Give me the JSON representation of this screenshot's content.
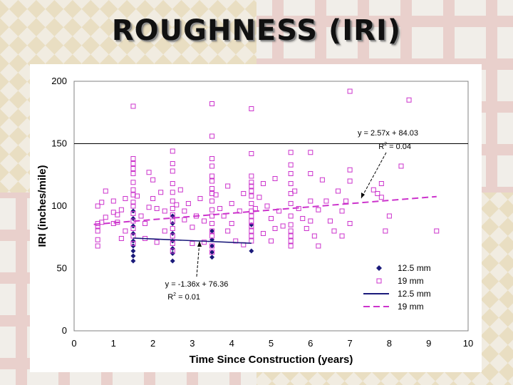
{
  "slide": {
    "title": "ROUGHNESS (IRI)",
    "flag_colors": [
      "#c8a24a",
      "#1a1a1a",
      "#b5453f",
      "#e7e1d5"
    ]
  },
  "chart_data": {
    "type": "scatter",
    "title": "",
    "xlabel": "Time Since Construction (years)",
    "ylabel": "IRI (inches/mile)",
    "xlim": [
      0,
      10
    ],
    "ylim": [
      0,
      200
    ],
    "xticks": [
      "0",
      "1",
      "2",
      "3",
      "4",
      "5",
      "6",
      "7",
      "8",
      "9",
      "10"
    ],
    "yticks": [
      "0",
      "50",
      "100",
      "150",
      "200"
    ],
    "grid": "horizontal at 150",
    "legend_position": "bottom-right",
    "series": [
      {
        "name": "12.5 mm",
        "kind": "points",
        "marker": "diamond",
        "color": "#1a1a7a",
        "points": [
          [
            1.5,
            56
          ],
          [
            1.5,
            60
          ],
          [
            1.5,
            64
          ],
          [
            1.5,
            68
          ],
          [
            1.5,
            72
          ],
          [
            1.5,
            78
          ],
          [
            1.5,
            84
          ],
          [
            1.5,
            90
          ],
          [
            1.5,
            96
          ],
          [
            2.5,
            56
          ],
          [
            2.5,
            62
          ],
          [
            2.5,
            66
          ],
          [
            2.5,
            72
          ],
          [
            2.5,
            78
          ],
          [
            2.5,
            86
          ],
          [
            2.5,
            92
          ],
          [
            3.5,
            59
          ],
          [
            3.5,
            63
          ],
          [
            3.5,
            68
          ],
          [
            3.5,
            73
          ],
          [
            3.5,
            80
          ],
          [
            4.5,
            64
          ],
          [
            4.5,
            85
          ]
        ]
      },
      {
        "name": "19 mm",
        "kind": "points",
        "marker": "square",
        "color": "#cc33cc",
        "points": [
          [
            0.6,
            68
          ],
          [
            0.6,
            73
          ],
          [
            0.6,
            80
          ],
          [
            0.6,
            84
          ],
          [
            0.6,
            86
          ],
          [
            0.6,
            100
          ],
          [
            0.7,
            103
          ],
          [
            0.7,
            87
          ],
          [
            0.8,
            91
          ],
          [
            0.8,
            112
          ],
          [
            1.0,
            86
          ],
          [
            1.0,
            95
          ],
          [
            1.0,
            104
          ],
          [
            1.1,
            93
          ],
          [
            1.1,
            87
          ],
          [
            1.2,
            97
          ],
          [
            1.2,
            74
          ],
          [
            1.3,
            106
          ],
          [
            1.3,
            80
          ],
          [
            1.5,
            180
          ],
          [
            1.5,
            138
          ],
          [
            1.5,
            134
          ],
          [
            1.5,
            130
          ],
          [
            1.5,
            126
          ],
          [
            1.5,
            119
          ],
          [
            1.5,
            113
          ],
          [
            1.5,
            109
          ],
          [
            1.5,
            103
          ],
          [
            1.5,
            100
          ],
          [
            1.5,
            94
          ],
          [
            1.5,
            88
          ],
          [
            1.5,
            82
          ],
          [
            1.5,
            76
          ],
          [
            1.5,
            70
          ],
          [
            1.6,
            108
          ],
          [
            1.7,
            92
          ],
          [
            1.8,
            86
          ],
          [
            1.8,
            74
          ],
          [
            1.9,
            127
          ],
          [
            1.9,
            99
          ],
          [
            2.0,
            121
          ],
          [
            2.0,
            106
          ],
          [
            2.1,
            98
          ],
          [
            2.1,
            71
          ],
          [
            2.2,
            111
          ],
          [
            2.3,
            96
          ],
          [
            2.3,
            80
          ],
          [
            2.5,
            144
          ],
          [
            2.5,
            134
          ],
          [
            2.5,
            128
          ],
          [
            2.5,
            118
          ],
          [
            2.5,
            111
          ],
          [
            2.5,
            104
          ],
          [
            2.5,
            98
          ],
          [
            2.5,
            93
          ],
          [
            2.5,
            88
          ],
          [
            2.5,
            82
          ],
          [
            2.5,
            76
          ],
          [
            2.5,
            70
          ],
          [
            2.5,
            64
          ],
          [
            2.6,
            101
          ],
          [
            2.7,
            113
          ],
          [
            2.8,
            96
          ],
          [
            2.8,
            89
          ],
          [
            2.9,
            102
          ],
          [
            3.0,
            83
          ],
          [
            3.0,
            70
          ],
          [
            3.1,
            92
          ],
          [
            3.2,
            106
          ],
          [
            3.3,
            88
          ],
          [
            3.3,
            71
          ],
          [
            3.5,
            182
          ],
          [
            3.5,
            156
          ],
          [
            3.5,
            138
          ],
          [
            3.5,
            132
          ],
          [
            3.5,
            124
          ],
          [
            3.5,
            120
          ],
          [
            3.5,
            114
          ],
          [
            3.5,
            110
          ],
          [
            3.5,
            104
          ],
          [
            3.5,
            97
          ],
          [
            3.5,
            92
          ],
          [
            3.5,
            86
          ],
          [
            3.5,
            80
          ],
          [
            3.5,
            76
          ],
          [
            3.5,
            68
          ],
          [
            3.5,
            63
          ],
          [
            3.6,
            109
          ],
          [
            3.7,
            98
          ],
          [
            3.8,
            92
          ],
          [
            3.9,
            80
          ],
          [
            3.9,
            116
          ],
          [
            4.0,
            102
          ],
          [
            4.0,
            86
          ],
          [
            4.1,
            72
          ],
          [
            4.2,
            96
          ],
          [
            4.3,
            110
          ],
          [
            4.3,
            69
          ],
          [
            4.5,
            178
          ],
          [
            4.5,
            142
          ],
          [
            4.5,
            124
          ],
          [
            4.5,
            119
          ],
          [
            4.5,
            116
          ],
          [
            4.5,
            112
          ],
          [
            4.5,
            108
          ],
          [
            4.5,
            102
          ],
          [
            4.5,
            96
          ],
          [
            4.5,
            92
          ],
          [
            4.5,
            88
          ],
          [
            4.5,
            84
          ],
          [
            4.5,
            80
          ],
          [
            4.5,
            76
          ],
          [
            4.5,
            72
          ],
          [
            4.6,
            98
          ],
          [
            4.7,
            107
          ],
          [
            4.8,
            118
          ],
          [
            4.8,
            78
          ],
          [
            4.9,
            100
          ],
          [
            5.0,
            90
          ],
          [
            5.0,
            72
          ],
          [
            5.1,
            82
          ],
          [
            5.1,
            122
          ],
          [
            5.2,
            96
          ],
          [
            5.3,
            84
          ],
          [
            5.5,
            143
          ],
          [
            5.5,
            133
          ],
          [
            5.5,
            126
          ],
          [
            5.5,
            118
          ],
          [
            5.5,
            110
          ],
          [
            5.5,
            102
          ],
          [
            5.5,
            92
          ],
          [
            5.5,
            85
          ],
          [
            5.5,
            80
          ],
          [
            5.5,
            76
          ],
          [
            5.5,
            72
          ],
          [
            5.5,
            68
          ],
          [
            5.6,
            112
          ],
          [
            5.7,
            98
          ],
          [
            5.8,
            90
          ],
          [
            5.9,
            82
          ],
          [
            6.0,
            143
          ],
          [
            6.0,
            126
          ],
          [
            6.0,
            104
          ],
          [
            6.0,
            88
          ],
          [
            6.1,
            76
          ],
          [
            6.2,
            97
          ],
          [
            6.2,
            68
          ],
          [
            6.3,
            121
          ],
          [
            6.4,
            104
          ],
          [
            6.5,
            88
          ],
          [
            6.6,
            80
          ],
          [
            6.7,
            112
          ],
          [
            6.8,
            96
          ],
          [
            6.8,
            76
          ],
          [
            6.9,
            104
          ],
          [
            7.0,
            192
          ],
          [
            7.0,
            129
          ],
          [
            7.0,
            120
          ],
          [
            7.0,
            86
          ],
          [
            7.6,
            113
          ],
          [
            7.7,
            110
          ],
          [
            7.8,
            118
          ],
          [
            7.8,
            107
          ],
          [
            7.9,
            80
          ],
          [
            8.0,
            92
          ],
          [
            8.3,
            132
          ],
          [
            8.5,
            185
          ],
          [
            9.2,
            80
          ]
        ]
      },
      {
        "name": "12.5 mm",
        "kind": "trendline",
        "style": "solid",
        "color": "#1a1a7a",
        "x": [
          1.5,
          4.5
        ],
        "y": [
          74.3,
          70.2
        ],
        "equation": "y = -1.36x + 76.36",
        "r2_label": "R",
        "r2_exp": "2",
        "r2_value": " = 0.01"
      },
      {
        "name": "19 mm",
        "kind": "trendline",
        "style": "dashed",
        "color": "#cc33cc",
        "x": [
          0.5,
          9.2
        ],
        "y": [
          85.3,
          107.6
        ],
        "equation": "y = 2.57x + 84.03",
        "r2_label": "R",
        "r2_exp": "2",
        "r2_value": " = 0.04"
      }
    ]
  }
}
